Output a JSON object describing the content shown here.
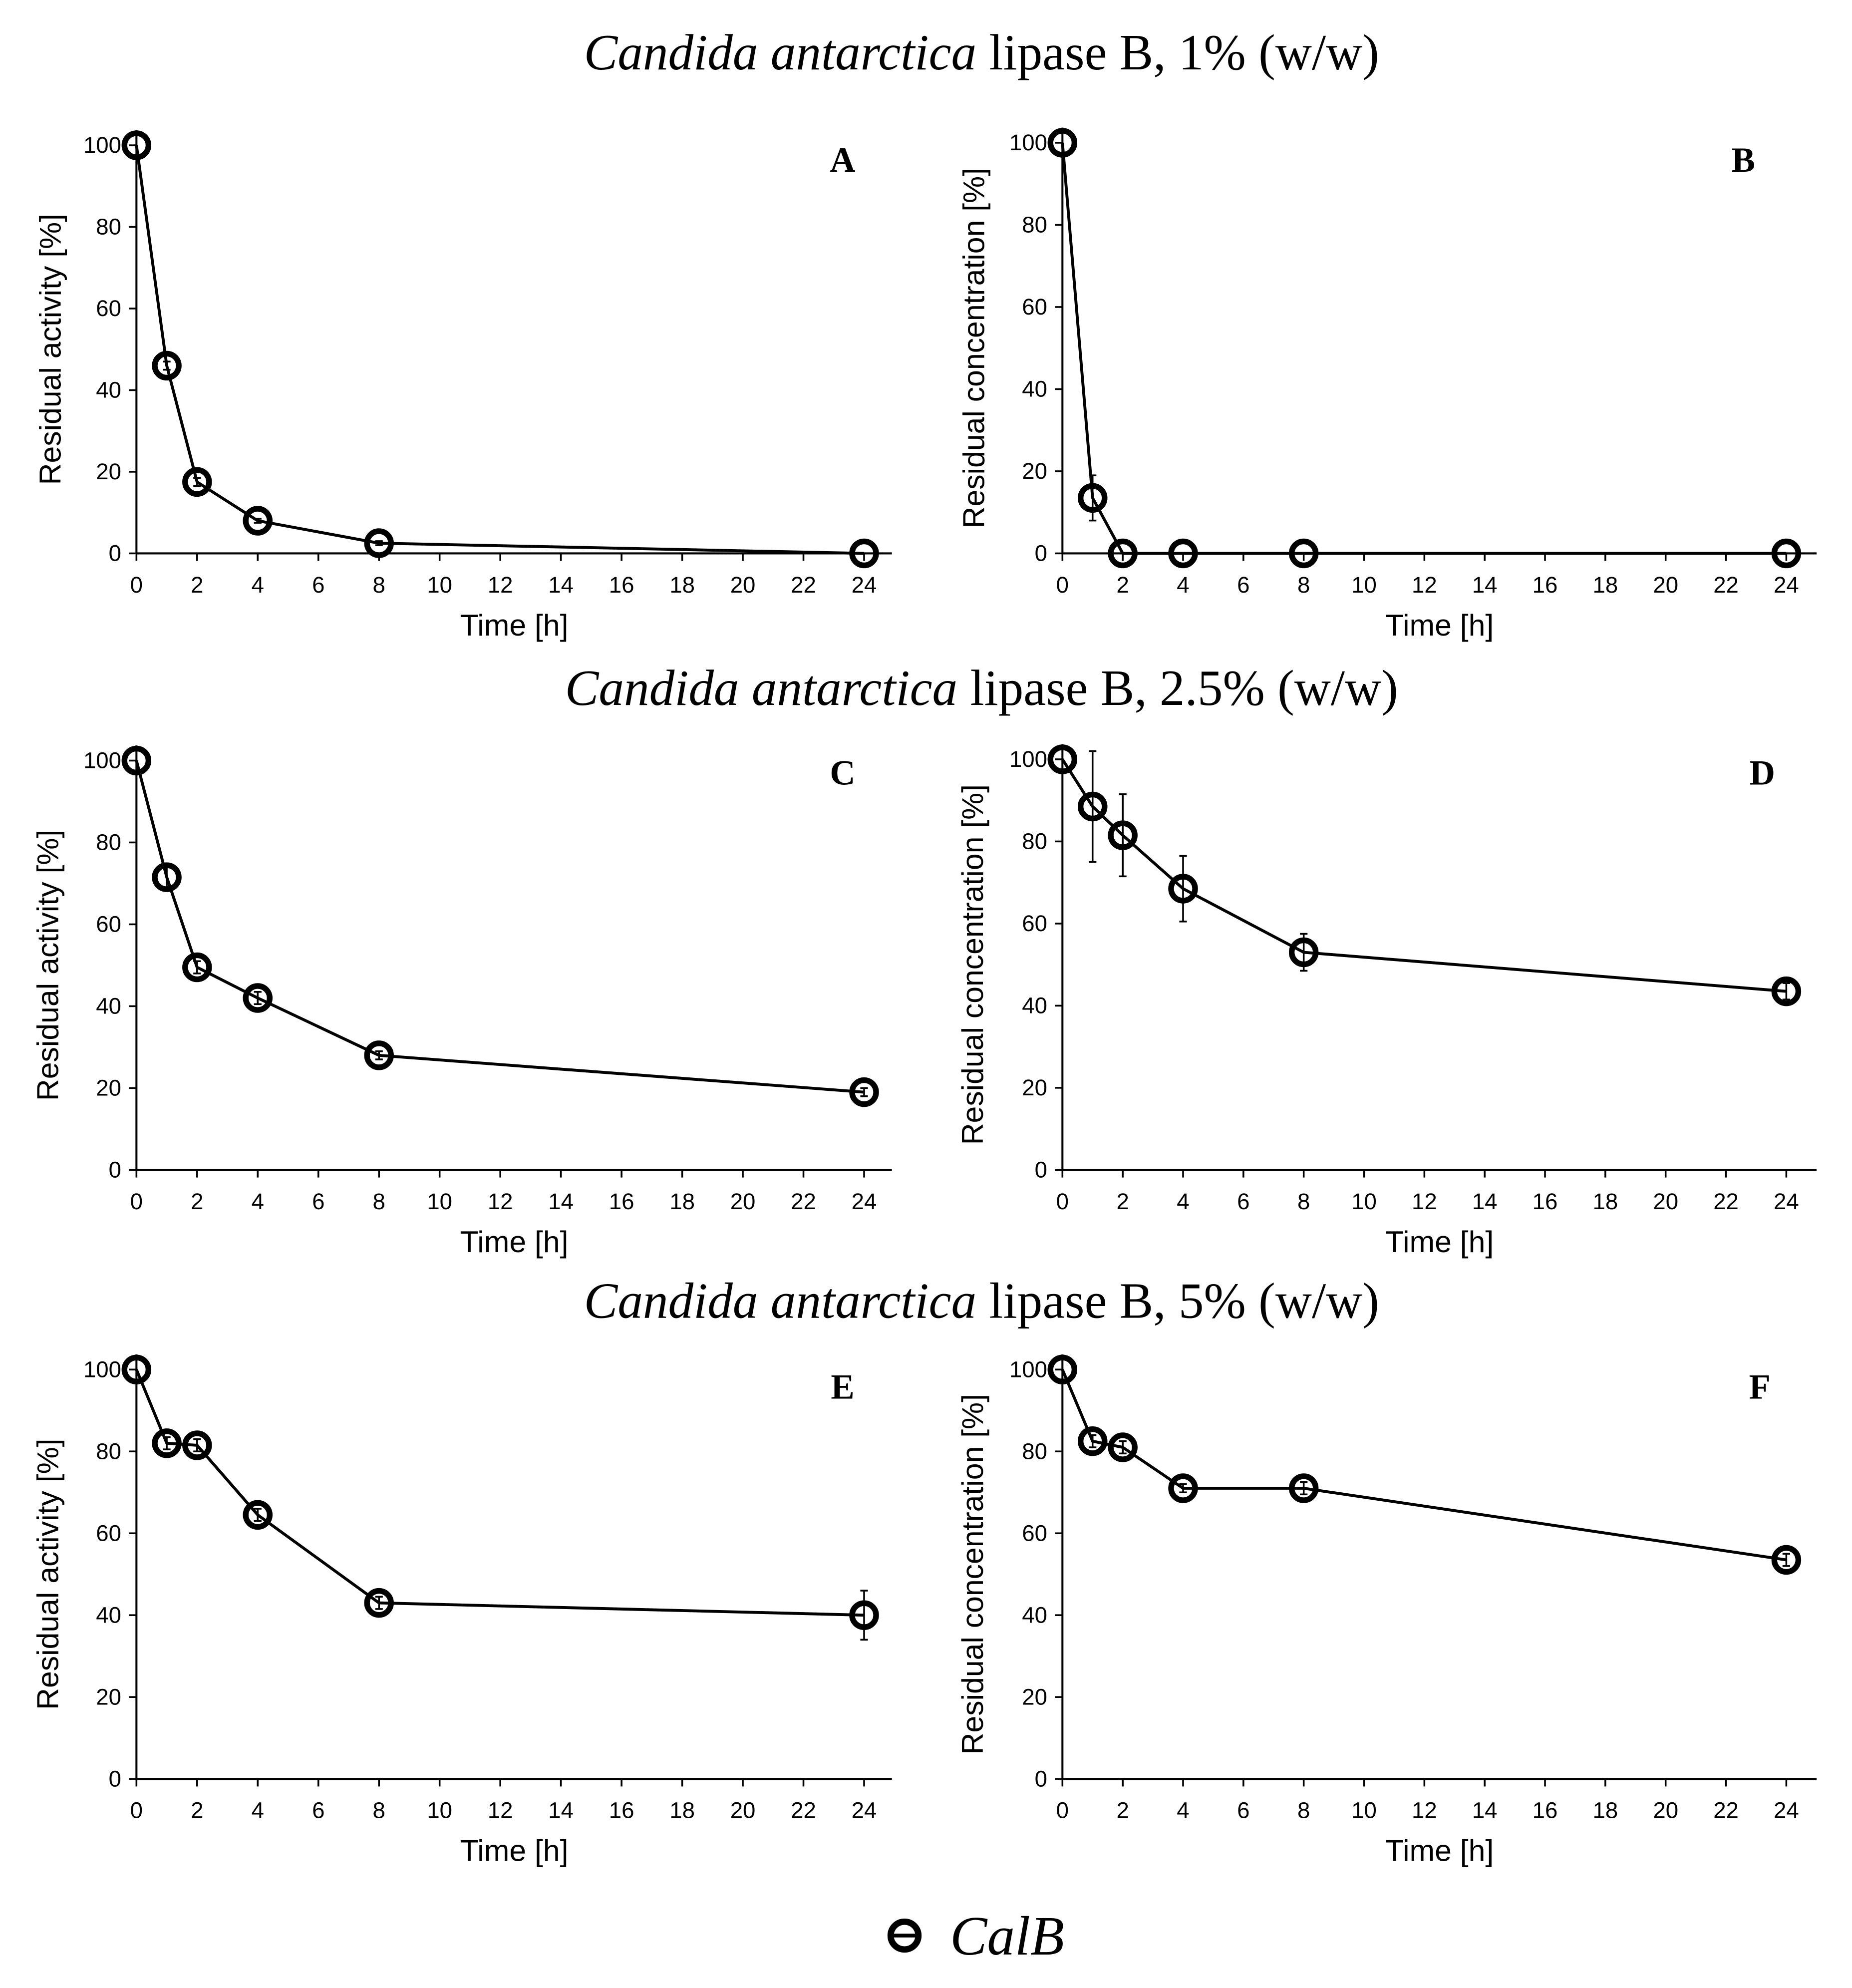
{
  "figure": {
    "section_titles": [
      {
        "species": "Candida antarctica",
        "rest": "lipase B, 1% (w/w)"
      },
      {
        "species": "Candida antarctica",
        "rest": "lipase B, 2.5% (w/w)"
      },
      {
        "species": "Candida antarctica",
        "rest": "lipase B, 5% (w/w)"
      }
    ],
    "legend": {
      "label": "CalB"
    }
  },
  "colors": {
    "background": "#ffffff",
    "axis": "#000000",
    "series": "#000000"
  },
  "chart_data": [
    {
      "panel_label": "A",
      "type": "line",
      "xlabel": "Time [h]",
      "ylabel": "Residual activity [%]",
      "xlim": [
        0,
        24
      ],
      "ylim": [
        0,
        100
      ],
      "xticks": [
        0,
        2,
        4,
        6,
        8,
        10,
        12,
        14,
        16,
        18,
        20,
        22,
        24
      ],
      "yticks": [
        0,
        20,
        40,
        60,
        80,
        100
      ],
      "series": [
        {
          "name": "CalB",
          "x": [
            0,
            1,
            2,
            4,
            8,
            24
          ],
          "y": [
            100,
            46,
            17.5,
            8,
            2.5,
            0
          ],
          "error": [
            0,
            1,
            1,
            0.5,
            0.5,
            0
          ]
        }
      ]
    },
    {
      "panel_label": "B",
      "type": "line",
      "xlabel": "Time [h]",
      "ylabel": "Residual concentration [%]",
      "xlim": [
        0,
        24
      ],
      "ylim": [
        0,
        100
      ],
      "xticks": [
        0,
        2,
        4,
        6,
        8,
        10,
        12,
        14,
        16,
        18,
        20,
        22,
        24
      ],
      "yticks": [
        0,
        20,
        40,
        60,
        80,
        100
      ],
      "series": [
        {
          "name": "CalB",
          "x": [
            0,
            1,
            2,
            4,
            8,
            24
          ],
          "y": [
            100,
            13.5,
            0,
            0,
            0,
            0
          ],
          "error": [
            0,
            5.5,
            0,
            0,
            0,
            0
          ]
        }
      ]
    },
    {
      "panel_label": "C",
      "type": "line",
      "xlabel": "Time [h]",
      "ylabel": "Residual activity [%]",
      "xlim": [
        0,
        24
      ],
      "ylim": [
        0,
        100
      ],
      "xticks": [
        0,
        2,
        4,
        6,
        8,
        10,
        12,
        14,
        16,
        18,
        20,
        22,
        24
      ],
      "yticks": [
        0,
        20,
        40,
        60,
        80,
        100
      ],
      "series": [
        {
          "name": "CalB",
          "x": [
            0,
            1,
            2,
            4,
            8,
            24
          ],
          "y": [
            100,
            71.5,
            49.5,
            42,
            28,
            19
          ],
          "error": [
            0,
            3,
            1.5,
            1.5,
            1,
            1
          ]
        }
      ]
    },
    {
      "panel_label": "D",
      "type": "line",
      "xlabel": "Time [h]",
      "ylabel": "Residual concentration [%]",
      "xlim": [
        0,
        24
      ],
      "ylim": [
        0,
        100
      ],
      "xticks": [
        0,
        2,
        4,
        6,
        8,
        10,
        12,
        14,
        16,
        18,
        20,
        22,
        24
      ],
      "yticks": [
        0,
        20,
        40,
        60,
        80,
        100
      ],
      "series": [
        {
          "name": "CalB",
          "x": [
            0,
            1,
            2,
            4,
            8,
            24
          ],
          "y": [
            100,
            88.5,
            81.5,
            68.5,
            53,
            43.5
          ],
          "error": [
            0,
            13.5,
            10,
            8,
            4.5,
            2
          ]
        }
      ]
    },
    {
      "panel_label": "E",
      "type": "line",
      "xlabel": "Time [h]",
      "ylabel": "Residual activity [%]",
      "xlim": [
        0,
        24
      ],
      "ylim": [
        0,
        100
      ],
      "xticks": [
        0,
        2,
        4,
        6,
        8,
        10,
        12,
        14,
        16,
        18,
        20,
        22,
        24
      ],
      "yticks": [
        0,
        20,
        40,
        60,
        80,
        100
      ],
      "series": [
        {
          "name": "CalB",
          "x": [
            0,
            1,
            2,
            4,
            8,
            24
          ],
          "y": [
            100,
            82,
            81.5,
            64.5,
            43,
            40
          ],
          "error": [
            0,
            1.5,
            1.5,
            1.5,
            1.5,
            6
          ]
        }
      ]
    },
    {
      "panel_label": "F",
      "type": "line",
      "xlabel": "Time [h]",
      "ylabel": "Residual concentration [%]",
      "xlim": [
        0,
        24
      ],
      "ylim": [
        0,
        100
      ],
      "xticks": [
        0,
        2,
        4,
        6,
        8,
        10,
        12,
        14,
        16,
        18,
        20,
        22,
        24
      ],
      "yticks": [
        0,
        20,
        40,
        60,
        80,
        100
      ],
      "series": [
        {
          "name": "CalB",
          "x": [
            0,
            1,
            2,
            4,
            8,
            24
          ],
          "y": [
            100,
            82.5,
            81,
            71,
            71,
            53.5
          ],
          "error": [
            0,
            1.5,
            1.5,
            1,
            1.5,
            1.5
          ]
        }
      ]
    }
  ]
}
